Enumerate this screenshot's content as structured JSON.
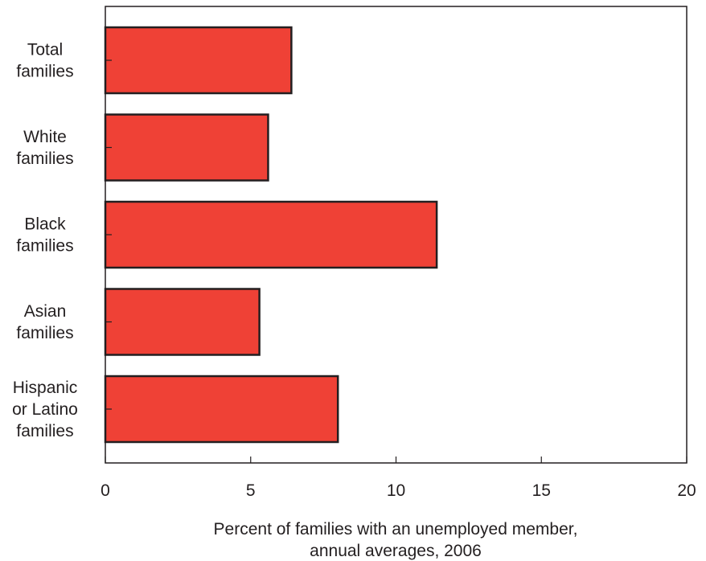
{
  "chart_data": {
    "type": "bar",
    "orientation": "horizontal",
    "categories": [
      [
        "Total",
        "families"
      ],
      [
        "White",
        "families"
      ],
      [
        "Black",
        "families"
      ],
      [
        "Asian",
        "families"
      ],
      [
        "Hispanic",
        "or Latino",
        "families"
      ]
    ],
    "values": [
      6.4,
      5.6,
      11.4,
      5.3,
      8.0
    ],
    "xlabel": [
      "Percent of families with an unemployed member,",
      "annual averages, 2006"
    ],
    "ylabel": "",
    "xlim": [
      0,
      20
    ],
    "xticks": [
      "0",
      "5",
      "10",
      "15",
      "20"
    ],
    "grid": false,
    "colors": {
      "bar_fill": "#ef4136",
      "bar_stroke": "#231f20",
      "axis": "#231f20"
    }
  }
}
